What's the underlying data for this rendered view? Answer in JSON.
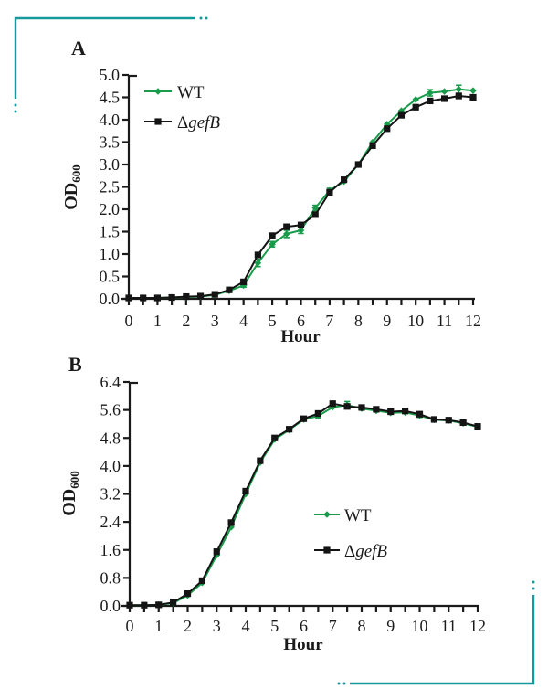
{
  "figure": {
    "title": "Growth curves figure",
    "background": "#ffffff",
    "bracket_color": "#17999b",
    "text_color": "#1a1a1a"
  },
  "chart_data": [
    {
      "type": "line",
      "panel_label": "A",
      "title": "",
      "xlabel": "Hour",
      "ylabel": "OD",
      "ylabel_subscript": "600",
      "xlim": [
        0,
        12
      ],
      "ylim": [
        0,
        5.0
      ],
      "xticks": [
        0,
        1,
        2,
        3,
        4,
        5,
        6,
        7,
        8,
        9,
        10,
        11,
        12
      ],
      "yticks": [
        0.0,
        0.5,
        1.0,
        1.5,
        2.0,
        2.5,
        3.0,
        3.5,
        4.0,
        4.5,
        5.0
      ],
      "x_minor_step": 0.5,
      "grid": false,
      "legend_position": "inside-top-left",
      "x": [
        0,
        0.5,
        1,
        1.5,
        2,
        2.5,
        3,
        3.5,
        4,
        4.5,
        5,
        5.5,
        6,
        6.5,
        7,
        7.5,
        8,
        8.5,
        9,
        9.5,
        10,
        10.5,
        11,
        11.5,
        12
      ],
      "series": [
        {
          "name": "WT",
          "name_prefix": "",
          "name_italic": "",
          "color": "#189b4a",
          "marker": "diamond",
          "values": [
            0.02,
            0.02,
            0.02,
            0.03,
            0.04,
            0.05,
            0.09,
            0.18,
            0.3,
            0.8,
            1.22,
            1.45,
            1.53,
            2.03,
            2.42,
            2.62,
            3.0,
            3.5,
            3.9,
            4.2,
            4.45,
            4.6,
            4.63,
            4.68,
            4.65
          ],
          "errors": [
            0,
            0,
            0,
            0,
            0,
            0,
            0,
            0,
            0.04,
            0.08,
            0.06,
            0.08,
            0.07,
            0.06,
            0.05,
            0,
            0,
            0,
            0,
            0,
            0,
            0.07,
            0,
            0.09,
            0
          ]
        },
        {
          "name": "ΔgefB",
          "name_prefix": "Δ",
          "name_italic": "gefB",
          "color": "#141414",
          "marker": "square",
          "values": [
            0.02,
            0.02,
            0.02,
            0.03,
            0.05,
            0.06,
            0.1,
            0.2,
            0.38,
            0.98,
            1.41,
            1.61,
            1.65,
            1.88,
            2.38,
            2.66,
            3.0,
            3.42,
            3.8,
            4.1,
            4.28,
            4.42,
            4.47,
            4.53,
            4.5
          ],
          "errors": [
            0,
            0,
            0,
            0,
            0,
            0,
            0,
            0,
            0,
            0,
            0,
            0,
            0,
            0,
            0,
            0,
            0,
            0,
            0,
            0,
            0,
            0,
            0,
            0.05,
            0
          ]
        }
      ]
    },
    {
      "type": "line",
      "panel_label": "B",
      "title": "",
      "xlabel": "Hour",
      "ylabel": "OD",
      "ylabel_subscript": "600",
      "xlim": [
        0,
        12
      ],
      "ylim": [
        0,
        6.4
      ],
      "xticks": [
        0,
        1,
        2,
        3,
        4,
        5,
        6,
        7,
        8,
        9,
        10,
        11,
        12
      ],
      "yticks": [
        0.0,
        0.8,
        1.6,
        2.4,
        3.2,
        4.0,
        4.8,
        5.6,
        6.4
      ],
      "x_minor_step": 0.5,
      "grid": false,
      "legend_position": "inside-right-middle",
      "x": [
        0,
        0.5,
        1,
        1.5,
        2,
        2.5,
        3,
        3.5,
        4,
        4.5,
        5,
        5.5,
        6,
        6.5,
        7,
        7.5,
        8,
        8.5,
        9,
        9.5,
        10,
        10.5,
        11,
        11.5,
        12
      ],
      "series": [
        {
          "name": "WT",
          "name_prefix": "",
          "name_italic": "",
          "color": "#189b4a",
          "marker": "diamond",
          "values": [
            0.02,
            0.02,
            0.03,
            0.08,
            0.3,
            0.66,
            1.45,
            2.25,
            3.2,
            4.1,
            4.76,
            5.03,
            5.33,
            5.43,
            5.68,
            5.74,
            5.64,
            5.58,
            5.52,
            5.53,
            5.44,
            5.32,
            5.3,
            5.22,
            5.12
          ],
          "errors": [
            0,
            0,
            0,
            0,
            0,
            0,
            0,
            0,
            0,
            0,
            0,
            0,
            0,
            0.06,
            0,
            0.1,
            0,
            0,
            0,
            0,
            0.05,
            0,
            0,
            0,
            0
          ]
        },
        {
          "name": "ΔgefB",
          "name_prefix": "Δ",
          "name_italic": "gefB",
          "color": "#141414",
          "marker": "square",
          "values": [
            0.02,
            0.02,
            0.03,
            0.1,
            0.35,
            0.72,
            1.55,
            2.38,
            3.28,
            4.15,
            4.8,
            5.05,
            5.35,
            5.5,
            5.78,
            5.7,
            5.67,
            5.62,
            5.55,
            5.57,
            5.48,
            5.33,
            5.31,
            5.24,
            5.13
          ],
          "errors": [
            0,
            0,
            0,
            0,
            0,
            0,
            0,
            0,
            0,
            0,
            0,
            0,
            0,
            0,
            0,
            0,
            0,
            0,
            0,
            0,
            0,
            0,
            0,
            0,
            0
          ]
        }
      ]
    }
  ]
}
